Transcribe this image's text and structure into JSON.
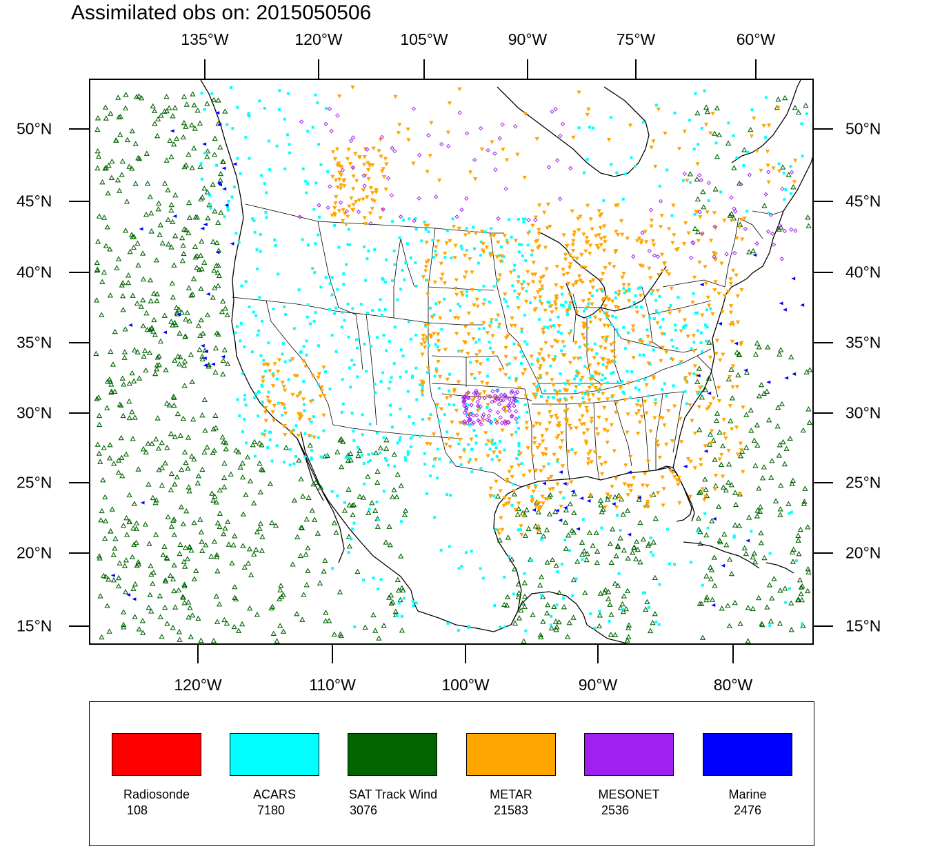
{
  "title": "Assimilated obs on: 2015050506",
  "top_axis_labels": [
    "135°W",
    "120°W",
    "105°W",
    "90°W",
    "75°W",
    "60°W"
  ],
  "bottom_axis_labels": [
    "120°W",
    "110°W",
    "100°W",
    "90°W",
    "80°W"
  ],
  "left_axis_labels": [
    "50°N",
    "45°N",
    "40°N",
    "35°N",
    "30°N",
    "25°N",
    "20°N",
    "15°N"
  ],
  "right_axis_labels": [
    "50°N",
    "45°N",
    "40°N",
    "35°N",
    "30°N",
    "25°N",
    "20°N",
    "15°N"
  ],
  "legend": [
    {
      "name": "Radiosonde",
      "count": "108",
      "color": "#ff0000"
    },
    {
      "name": "ACARS",
      "count": "7180",
      "color": "#00ffff"
    },
    {
      "name": "SAT Track Wind",
      "count": "3076",
      "color": "#006400"
    },
    {
      "name": "METAR",
      "count": "21583",
      "color": "#ffa500"
    },
    {
      "name": "MESONET",
      "count": "2536",
      "color": "#a020f0"
    },
    {
      "name": "Marine",
      "count": "2476",
      "color": "#0000ff"
    }
  ],
  "map": {
    "lon_range": [
      -128.5,
      -74.5
    ],
    "lat_range": [
      14.0,
      53.8
    ],
    "region": "North America, CONUS",
    "colors": {
      "coast": "#000000",
      "state_lines": "#000000",
      "background": "#ffffff"
    }
  }
}
